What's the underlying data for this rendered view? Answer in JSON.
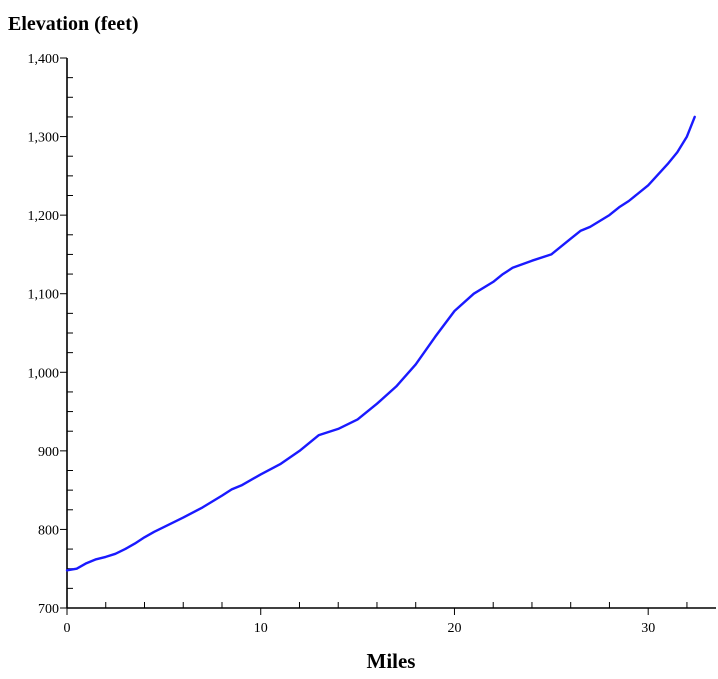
{
  "chart_data": {
    "type": "line",
    "title": "",
    "ylabel": "Elevation (feet)",
    "xlabel": "Miles",
    "xlim": [
      0,
      33.5
    ],
    "ylim": [
      700,
      1400
    ],
    "x_major_ticks": [
      0,
      10,
      20,
      30
    ],
    "x_tick_labels": [
      "0",
      "10",
      "20",
      "30"
    ],
    "x_minor_step": 2,
    "y_major_ticks": [
      700,
      800,
      900,
      1000,
      1100,
      1200,
      1300,
      1400
    ],
    "y_tick_labels": [
      "700",
      "800",
      "900",
      "1,000",
      "1,100",
      "1,200",
      "1,300",
      "1,400"
    ],
    "y_minor_step": 25,
    "grid": false,
    "series": [
      {
        "color": "#1a1aff",
        "x": [
          0,
          0.5,
          1,
          1.5,
          2,
          2.5,
          3,
          3.5,
          4,
          4.5,
          5,
          6,
          7,
          8,
          8.5,
          9,
          10,
          11,
          12,
          13,
          14,
          15,
          16,
          17,
          18,
          19,
          20,
          21,
          22,
          22.5,
          23,
          24,
          25,
          26,
          26.5,
          27,
          28,
          28.5,
          29,
          30,
          31,
          31.5,
          32,
          32.4
        ],
        "y": [
          748,
          750,
          757,
          762,
          765,
          769,
          775,
          782,
          790,
          797,
          803,
          815,
          828,
          843,
          851,
          856,
          870,
          883,
          900,
          920,
          928,
          940,
          960,
          982,
          1010,
          1045,
          1078,
          1100,
          1115,
          1125,
          1133,
          1142,
          1150,
          1170,
          1180,
          1185,
          1200,
          1210,
          1218,
          1238,
          1265,
          1280,
          1300,
          1325
        ]
      }
    ]
  }
}
